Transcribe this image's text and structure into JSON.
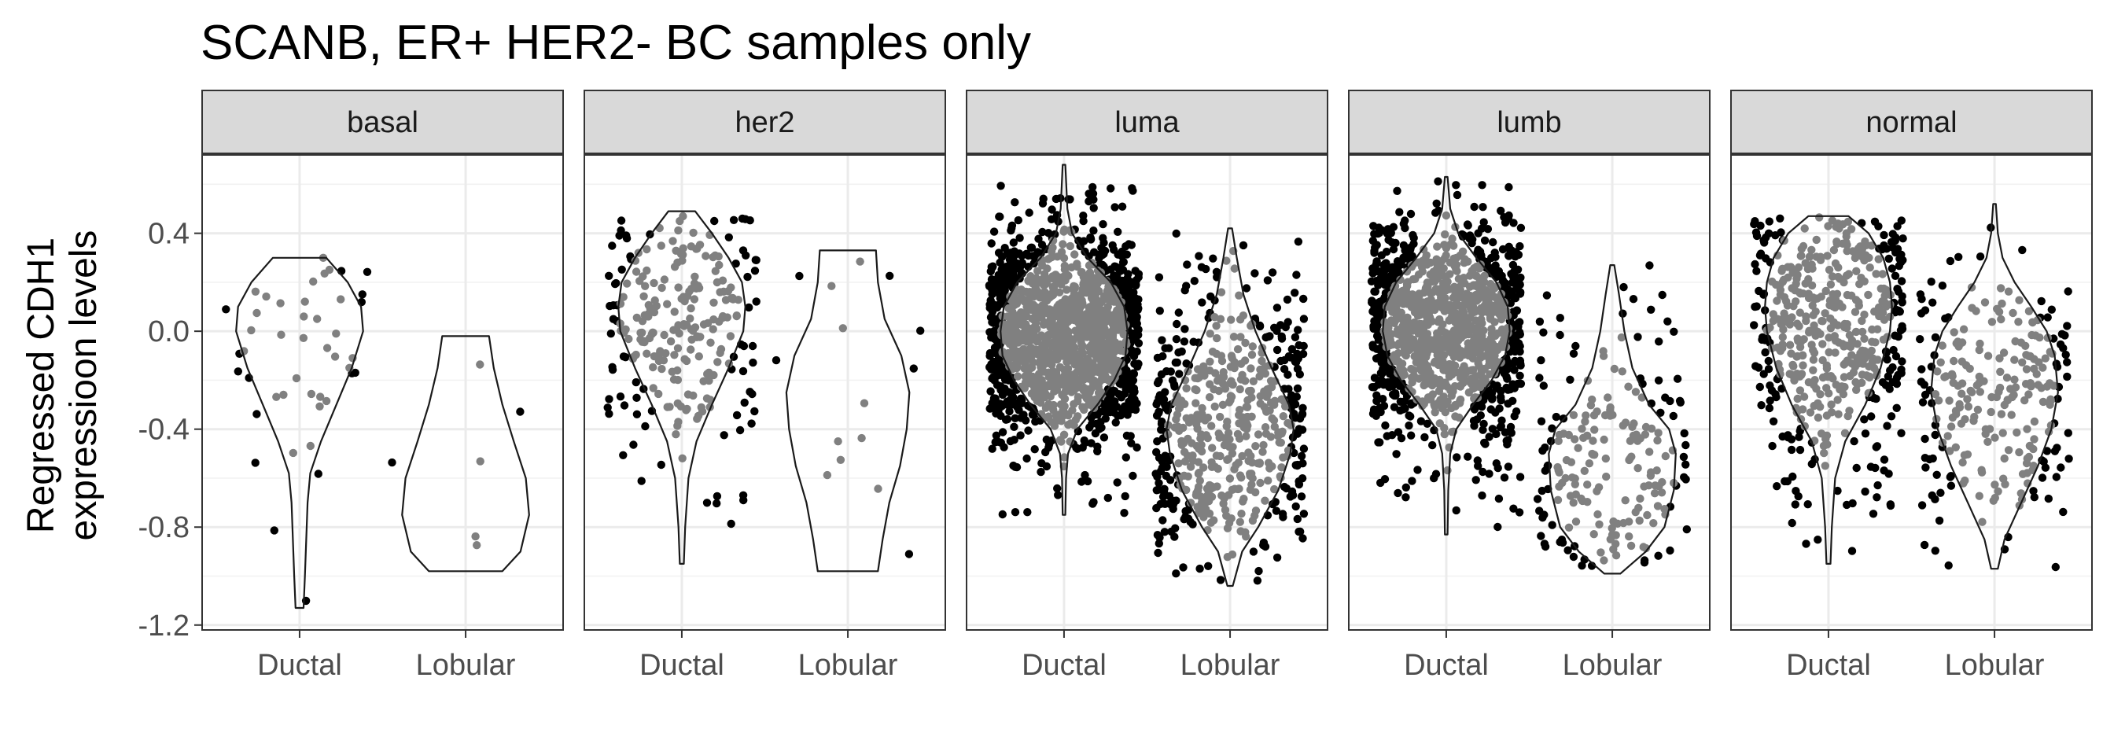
{
  "chart_data": {
    "type": "violin",
    "title": "SCANB, ER+ HER2- BC samples only",
    "ylabel_lines": [
      "Regressed CDH1",
      "expressioon levels"
    ],
    "categories": [
      "Ductal",
      "Lobular"
    ],
    "ylim": [
      -1.22,
      0.72
    ],
    "yticks": [
      -1.2,
      -0.8,
      -0.4,
      0.0,
      0.4
    ],
    "ytick_labels": [
      "-1.2",
      "-0.8",
      "-0.4",
      "0.0",
      "0.4"
    ],
    "grid": true,
    "colors": {
      "outside_points": "#000000",
      "inside_points": "#808080",
      "strip": "#d9d9d9"
    },
    "facets": [
      {
        "name": "basal",
        "groups": [
          {
            "category": "Ductal",
            "n": 45,
            "min": -1.13,
            "max": 0.3,
            "profile": [
              [
                -1.13,
                0.06
              ],
              [
                -1.0,
                0.08
              ],
              [
                -0.85,
                0.1
              ],
              [
                -0.7,
                0.12
              ],
              [
                -0.58,
                0.16
              ],
              [
                -0.45,
                0.32
              ],
              [
                -0.3,
                0.55
              ],
              [
                -0.15,
                0.78
              ],
              [
                0.0,
                0.95
              ],
              [
                0.1,
                0.92
              ],
              [
                0.2,
                0.72
              ],
              [
                0.3,
                0.4
              ]
            ]
          },
          {
            "category": "Lobular",
            "n": 6,
            "min": -0.98,
            "max": -0.02,
            "profile": [
              [
                -0.98,
                0.55
              ],
              [
                -0.9,
                0.82
              ],
              [
                -0.75,
                0.95
              ],
              [
                -0.6,
                0.9
              ],
              [
                -0.45,
                0.72
              ],
              [
                -0.3,
                0.55
              ],
              [
                -0.15,
                0.42
              ],
              [
                -0.02,
                0.35
              ]
            ]
          }
        ]
      },
      {
        "name": "her2",
        "groups": [
          {
            "category": "Ductal",
            "n": 250,
            "min": -0.95,
            "max": 0.49,
            "profile": [
              [
                -0.95,
                0.03
              ],
              [
                -0.8,
                0.05
              ],
              [
                -0.6,
                0.1
              ],
              [
                -0.45,
                0.22
              ],
              [
                -0.3,
                0.45
              ],
              [
                -0.15,
                0.7
              ],
              [
                0.0,
                0.92
              ],
              [
                0.1,
                0.95
              ],
              [
                0.2,
                0.9
              ],
              [
                0.3,
                0.7
              ],
              [
                0.4,
                0.45
              ],
              [
                0.49,
                0.2
              ]
            ]
          },
          {
            "category": "Lobular",
            "n": 15,
            "min": -0.98,
            "max": 0.33,
            "profile": [
              [
                -0.98,
                0.45
              ],
              [
                -0.85,
                0.52
              ],
              [
                -0.7,
                0.62
              ],
              [
                -0.55,
                0.78
              ],
              [
                -0.4,
                0.88
              ],
              [
                -0.25,
                0.92
              ],
              [
                -0.1,
                0.8
              ],
              [
                0.05,
                0.55
              ],
              [
                0.2,
                0.45
              ],
              [
                0.33,
                0.42
              ]
            ]
          }
        ]
      },
      {
        "name": "luma",
        "groups": [
          {
            "category": "Ductal",
            "n": 1500,
            "min": -0.75,
            "max": 0.68,
            "profile": [
              [
                -0.75,
                0.02
              ],
              [
                -0.6,
                0.03
              ],
              [
                -0.5,
                0.06
              ],
              [
                -0.4,
                0.2
              ],
              [
                -0.3,
                0.5
              ],
              [
                -0.2,
                0.75
              ],
              [
                -0.1,
                0.92
              ],
              [
                0.0,
                0.95
              ],
              [
                0.1,
                0.9
              ],
              [
                0.2,
                0.7
              ],
              [
                0.3,
                0.35
              ],
              [
                0.4,
                0.12
              ],
              [
                0.5,
                0.05
              ],
              [
                0.68,
                0.02
              ]
            ]
          },
          {
            "category": "Lobular",
            "n": 550,
            "min": -1.04,
            "max": 0.42,
            "profile": [
              [
                -1.04,
                0.04
              ],
              [
                -0.9,
                0.18
              ],
              [
                -0.8,
                0.42
              ],
              [
                -0.65,
                0.72
              ],
              [
                -0.5,
                0.9
              ],
              [
                -0.4,
                0.95
              ],
              [
                -0.3,
                0.88
              ],
              [
                -0.15,
                0.62
              ],
              [
                0.0,
                0.38
              ],
              [
                0.15,
                0.2
              ],
              [
                0.3,
                0.1
              ],
              [
                0.42,
                0.03
              ]
            ]
          }
        ]
      },
      {
        "name": "lumb",
        "groups": [
          {
            "category": "Ductal",
            "n": 1200,
            "min": -0.83,
            "max": 0.63,
            "profile": [
              [
                -0.83,
                0.02
              ],
              [
                -0.65,
                0.03
              ],
              [
                -0.5,
                0.06
              ],
              [
                -0.4,
                0.15
              ],
              [
                -0.3,
                0.4
              ],
              [
                -0.2,
                0.68
              ],
              [
                -0.1,
                0.88
              ],
              [
                0.0,
                0.95
              ],
              [
                0.1,
                0.92
              ],
              [
                0.2,
                0.75
              ],
              [
                0.3,
                0.45
              ],
              [
                0.4,
                0.18
              ],
              [
                0.5,
                0.06
              ],
              [
                0.63,
                0.02
              ]
            ]
          },
          {
            "category": "Lobular",
            "n": 200,
            "min": -0.99,
            "max": 0.27,
            "profile": [
              [
                -0.99,
                0.12
              ],
              [
                -0.9,
                0.5
              ],
              [
                -0.8,
                0.78
              ],
              [
                -0.65,
                0.92
              ],
              [
                -0.5,
                0.95
              ],
              [
                -0.4,
                0.85
              ],
              [
                -0.3,
                0.55
              ],
              [
                -0.15,
                0.3
              ],
              [
                0.0,
                0.18
              ],
              [
                0.15,
                0.1
              ],
              [
                0.27,
                0.03
              ]
            ]
          }
        ]
      },
      {
        "name": "normal",
        "groups": [
          {
            "category": "Ductal",
            "n": 500,
            "min": -0.95,
            "max": 0.47,
            "profile": [
              [
                -0.95,
                0.03
              ],
              [
                -0.8,
                0.05
              ],
              [
                -0.6,
                0.1
              ],
              [
                -0.45,
                0.25
              ],
              [
                -0.3,
                0.55
              ],
              [
                -0.15,
                0.78
              ],
              [
                0.0,
                0.92
              ],
              [
                0.1,
                0.95
              ],
              [
                0.2,
                0.92
              ],
              [
                0.3,
                0.82
              ],
              [
                0.4,
                0.6
              ],
              [
                0.47,
                0.3
              ]
            ]
          },
          {
            "category": "Lobular",
            "n": 250,
            "min": -0.97,
            "max": 0.52,
            "profile": [
              [
                -0.97,
                0.05
              ],
              [
                -0.85,
                0.15
              ],
              [
                -0.7,
                0.4
              ],
              [
                -0.55,
                0.65
              ],
              [
                -0.4,
                0.85
              ],
              [
                -0.25,
                0.95
              ],
              [
                -0.1,
                0.9
              ],
              [
                0.0,
                0.78
              ],
              [
                0.1,
                0.55
              ],
              [
                0.2,
                0.3
              ],
              [
                0.3,
                0.12
              ],
              [
                0.4,
                0.05
              ],
              [
                0.52,
                0.02
              ]
            ]
          }
        ]
      }
    ]
  }
}
